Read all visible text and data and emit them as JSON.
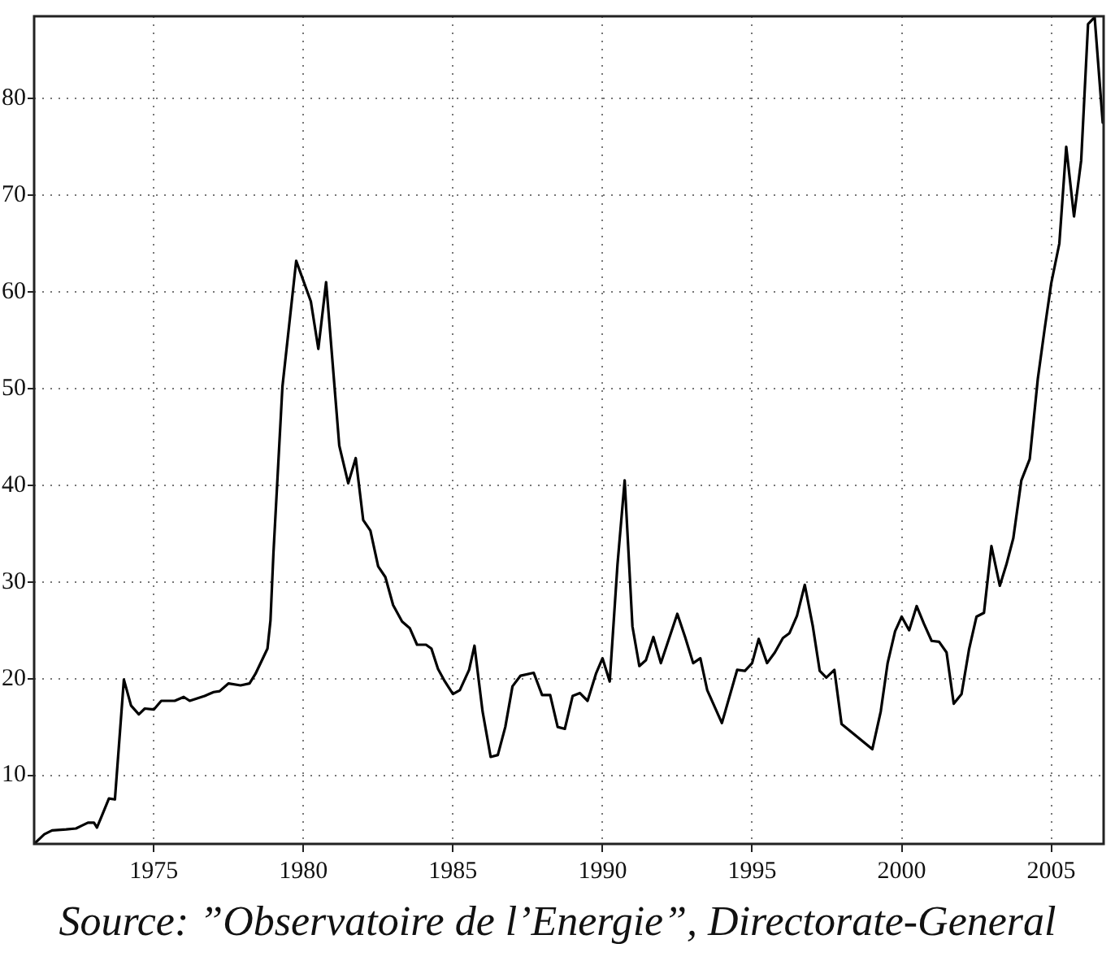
{
  "chart_data": {
    "type": "line",
    "annotations": [
      "Source: ”Observatoire de l’Energie”, Directorate-General"
    ],
    "xlim": [
      1971,
      2006.75
    ],
    "xticks": [
      1975,
      1980,
      1985,
      1990,
      1995,
      2000,
      2005
    ],
    "ylim": [
      2.9,
      88.5
    ],
    "yticks": [
      10,
      20,
      30,
      40,
      50,
      60,
      70,
      80
    ],
    "grid": true,
    "legend": false,
    "marker": "none",
    "line_style": "solid",
    "series": [
      {
        "color": "#000000",
        "x": [
          1971.0,
          1971.34,
          1971.6,
          1972.07,
          1972.4,
          1972.6,
          1972.8,
          1973.0,
          1973.1,
          1973.25,
          1973.5,
          1973.7,
          1974.0,
          1974.24,
          1974.5,
          1974.7,
          1975.0,
          1975.25,
          1975.7,
          1976.0,
          1976.2,
          1976.7,
          1977.0,
          1977.2,
          1977.5,
          1977.9,
          1978.2,
          1978.4,
          1978.8,
          1978.9,
          1979.0,
          1979.3,
          1979.76,
          1980.25,
          1980.5,
          1980.76,
          1981.2,
          1981.5,
          1981.75,
          1982.0,
          1982.24,
          1982.5,
          1982.74,
          1983.0,
          1983.3,
          1983.56,
          1983.8,
          1984.1,
          1984.28,
          1984.5,
          1984.73,
          1985.0,
          1985.23,
          1985.54,
          1985.72,
          1985.99,
          1986.26,
          1986.5,
          1986.75,
          1986.99,
          1987.26,
          1987.7,
          1987.98,
          1988.25,
          1988.5,
          1988.74,
          1989.0,
          1989.24,
          1989.5,
          1989.78,
          1990.0,
          1990.24,
          1990.5,
          1990.74,
          1991.0,
          1991.23,
          1991.45,
          1991.7,
          1991.95,
          1992.5,
          1992.76,
          1993.03,
          1993.27,
          1993.5,
          1993.99,
          1994.5,
          1994.76,
          1995.0,
          1995.22,
          1995.5,
          1995.76,
          1996.03,
          1996.25,
          1996.5,
          1996.76,
          1997.03,
          1997.26,
          1997.48,
          1997.75,
          1997.99,
          1999.02,
          1999.3,
          1999.53,
          1999.78,
          2000.0,
          2000.25,
          2000.5,
          2000.74,
          2001.0,
          2001.25,
          2001.5,
          2001.74,
          2002.0,
          2002.25,
          2002.5,
          2002.75,
          2003.0,
          2003.28,
          2003.5,
          2003.73,
          2004.0,
          2004.28,
          2004.55,
          2004.78,
          2005.0,
          2005.27,
          2005.5,
          2005.76,
          2006.0,
          2006.23,
          2006.45,
          2006.72
        ],
        "values": [
          2.9,
          3.9,
          4.3,
          4.4,
          4.5,
          4.8,
          5.1,
          5.1,
          4.6,
          5.7,
          7.6,
          7.5,
          19.9,
          17.2,
          16.3,
          16.9,
          16.8,
          17.7,
          17.7,
          18.1,
          17.7,
          18.2,
          18.6,
          18.7,
          19.5,
          19.3,
          19.5,
          20.5,
          23.1,
          26,
          33,
          50.2,
          63.2,
          59,
          54.1,
          61,
          44.1,
          40.2,
          42.8,
          36.4,
          35.3,
          31.6,
          30.5,
          27.6,
          25.9,
          25.2,
          23.5,
          23.5,
          23.1,
          21,
          19.7,
          18.4,
          18.8,
          20.9,
          23.4,
          16.6,
          11.9,
          12.1,
          15,
          19.2,
          20.3,
          20.6,
          18.3,
          18.3,
          15,
          14.8,
          18.2,
          18.5,
          17.7,
          20.5,
          22.1,
          19.7,
          31.8,
          40.5,
          25.4,
          21.3,
          21.9,
          24.3,
          21.6,
          26.7,
          24.3,
          21.6,
          22.1,
          18.8,
          15.4,
          20.9,
          20.8,
          21.6,
          24.1,
          21.6,
          22.7,
          24.2,
          24.7,
          26.5,
          29.7,
          25.4,
          20.8,
          20.1,
          20.9,
          15.3,
          12.7,
          16.6,
          21.6,
          24.9,
          26.4,
          25,
          27.5,
          25.7,
          23.9,
          23.8,
          22.7,
          17.4,
          18.4,
          23,
          26.4,
          26.8,
          33.7,
          29.6,
          31.8,
          34.5,
          40.5,
          42.7,
          51,
          56.2,
          60.9,
          65,
          75,
          67.8,
          73.6,
          87.7,
          88.4,
          77.5
        ]
      }
    ]
  }
}
